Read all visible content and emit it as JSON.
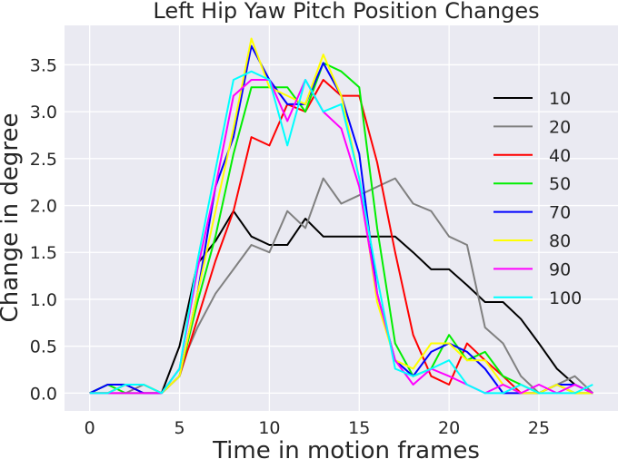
{
  "chart_data": {
    "type": "line",
    "title": "Left Hip Yaw Pitch Position Changes",
    "xlabel": "Time in motion frames",
    "ylabel": "Change in degree",
    "xlim": [
      -1.4,
      29.4
    ],
    "ylim": [
      -0.19,
      3.92
    ],
    "xticks": [
      0,
      5,
      10,
      15,
      20,
      25
    ],
    "yticks": [
      0.0,
      0.5,
      1.0,
      1.5,
      2.0,
      2.5,
      3.0,
      3.5
    ],
    "grid": true,
    "legend_position": "right",
    "x": [
      0,
      1,
      2,
      3,
      4,
      5,
      6,
      7,
      8,
      9,
      10,
      11,
      12,
      13,
      14,
      15,
      16,
      17,
      18,
      19,
      20,
      21,
      22,
      23,
      24,
      25,
      26,
      27,
      28
    ],
    "series": [
      {
        "name": "10",
        "color": "#000000",
        "values": [
          0,
          0.09,
          0.09,
          0.09,
          0,
          0.5,
          1.38,
          1.62,
          1.94,
          1.67,
          1.58,
          1.58,
          1.86,
          1.67,
          1.67,
          1.67,
          1.67,
          1.67,
          1.5,
          1.32,
          1.32,
          1.15,
          0.97,
          0.97,
          0.79,
          0.53,
          0.26,
          0.09,
          0
        ]
      },
      {
        "name": "20",
        "color": "#808080",
        "values": [
          0,
          0,
          0,
          0.09,
          0,
          0.26,
          0.7,
          1.06,
          1.32,
          1.58,
          1.5,
          1.94,
          1.76,
          2.29,
          2.02,
          2.11,
          2.2,
          2.29,
          2.02,
          1.94,
          1.67,
          1.58,
          0.7,
          0.53,
          0.18,
          0,
          0.09,
          0.18,
          0
        ]
      },
      {
        "name": "40",
        "color": "#ff0000",
        "values": [
          0,
          0,
          0.09,
          0,
          0,
          0.18,
          0.79,
          1.41,
          1.94,
          2.73,
          2.64,
          3.08,
          3.0,
          3.34,
          3.17,
          3.17,
          2.46,
          1.5,
          0.62,
          0.18,
          0.09,
          0.53,
          0.35,
          0.18,
          0,
          0,
          0.09,
          0,
          0
        ]
      },
      {
        "name": "50",
        "color": "#00ee00",
        "values": [
          0,
          0.09,
          0,
          0,
          0,
          0.18,
          0.97,
          1.67,
          2.55,
          3.26,
          3.26,
          3.26,
          3.0,
          3.52,
          3.43,
          3.26,
          1.76,
          0.53,
          0.18,
          0.26,
          0.62,
          0.35,
          0.44,
          0.18,
          0.09,
          0,
          0.09,
          0,
          0
        ]
      },
      {
        "name": "70",
        "color": "#0000ff",
        "values": [
          0,
          0.09,
          0.09,
          0,
          0,
          0.18,
          1.06,
          2.2,
          2.73,
          3.7,
          3.34,
          3.08,
          3.08,
          3.52,
          3.17,
          2.55,
          1.06,
          0.35,
          0.18,
          0.44,
          0.53,
          0.44,
          0.26,
          0,
          0,
          0,
          0.09,
          0.09,
          0
        ]
      },
      {
        "name": "80",
        "color": "#ffff00",
        "values": [
          0,
          0,
          0.09,
          0.09,
          0,
          0.18,
          1.06,
          1.94,
          2.82,
          3.78,
          3.26,
          3.17,
          3.08,
          3.61,
          3.17,
          2.29,
          0.97,
          0.35,
          0.26,
          0.53,
          0.53,
          0.35,
          0.35,
          0.09,
          0,
          0,
          0.09,
          0,
          0
        ]
      },
      {
        "name": "90",
        "color": "#ff00ff",
        "values": [
          0,
          0,
          0,
          0,
          0,
          0.26,
          1.32,
          2.2,
          3.17,
          3.34,
          3.34,
          2.9,
          3.34,
          3.0,
          2.82,
          2.2,
          1.06,
          0.35,
          0.09,
          0.26,
          0.18,
          0.09,
          0,
          0.09,
          0,
          0.09,
          0,
          0.09,
          0
        ]
      },
      {
        "name": "100",
        "color": "#00ffff",
        "values": [
          0,
          0,
          0.09,
          0.09,
          0,
          0.26,
          1.41,
          2.38,
          3.34,
          3.43,
          3.34,
          2.64,
          3.34,
          3.0,
          3.08,
          2.29,
          1.23,
          0.26,
          0.18,
          0.26,
          0.35,
          0.09,
          0,
          0,
          0.09,
          0,
          0,
          0,
          0.09
        ]
      }
    ]
  }
}
